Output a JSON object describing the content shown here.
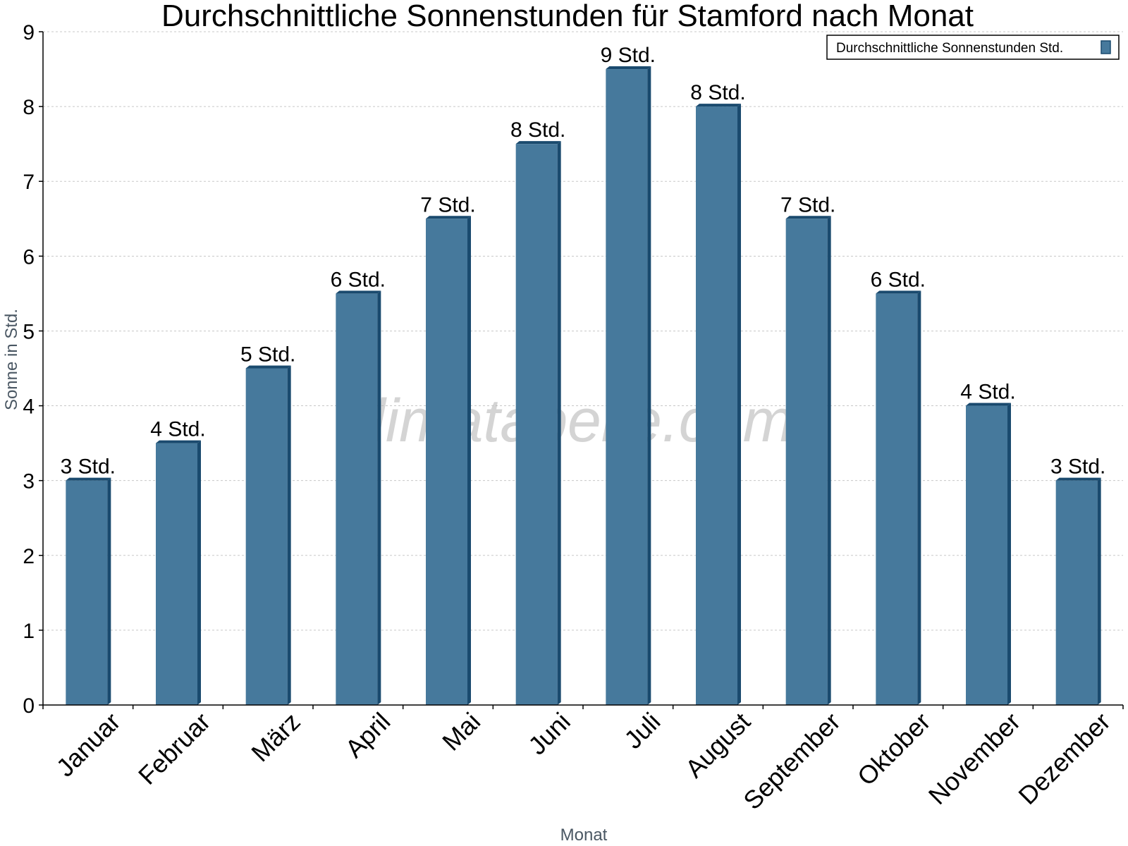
{
  "chart_data": {
    "type": "bar",
    "title": "Durchschnittliche Sonnenstunden für Stamford nach Monat",
    "xlabel": "Monat",
    "ylabel": "Sonne in Std.",
    "ylim": [
      0,
      9
    ],
    "yticks": [
      "0",
      "1",
      "2",
      "3",
      "4",
      "5",
      "6",
      "7",
      "8",
      "9"
    ],
    "categories": [
      "Januar",
      "Februar",
      "März",
      "April",
      "Mai",
      "Juni",
      "Juli",
      "August",
      "September",
      "Oktober",
      "November",
      "Dezember"
    ],
    "series": [
      {
        "name": "Durchschnittliche Sonnenstunden Std.",
        "values": [
          3,
          3.5,
          4.5,
          5.5,
          6.5,
          7.5,
          8.5,
          8,
          6.5,
          5.5,
          4,
          3
        ],
        "labels": [
          "3 Std.",
          "4 Std.",
          "5 Std.",
          "6 Std.",
          "7 Std.",
          "8 Std.",
          "9 Std.",
          "8 Std.",
          "7 Std.",
          "6 Std.",
          "4 Std.",
          "3 Std."
        ]
      }
    ],
    "grid": true,
    "legend_position": "top-right",
    "bar_color": "#46799c",
    "bar_edge_color": "#1a4a6e"
  },
  "watermark": "klimatabelle.com"
}
